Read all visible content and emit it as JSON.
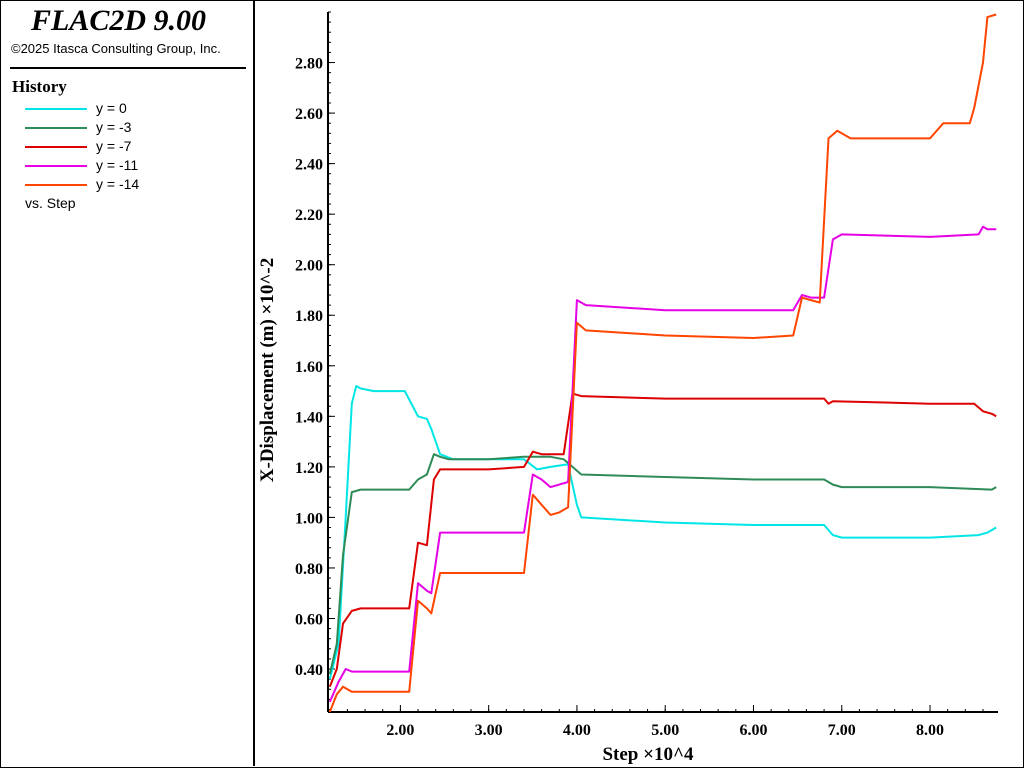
{
  "app": {
    "title": "FLAC2D 9.00",
    "copyright": "©2025 Itasca Consulting Group, Inc."
  },
  "legend": {
    "heading": "History",
    "items": [
      {
        "label": "y = 0",
        "color": "#00e6e6"
      },
      {
        "label": "y = -3",
        "color": "#2e8b57"
      },
      {
        "label": "y = -7",
        "color": "#dd0000"
      },
      {
        "label": "y = -11",
        "color": "#e600e6"
      },
      {
        "label": "y = -14",
        "color": "#ff4500"
      }
    ],
    "vs_label": "vs. Step"
  },
  "chart_data": {
    "type": "line",
    "xlabel": "Step ×10^4",
    "ylabel": "X-Displacement (m) ×10^-2",
    "xlim": [
      1.18,
      8.77
    ],
    "ylim": [
      0.23,
      3.0
    ],
    "xticks": [
      "2.00",
      "3.00",
      "4.00",
      "5.00",
      "6.00",
      "7.00",
      "8.00"
    ],
    "yticks": [
      "0.40",
      "0.60",
      "0.80",
      "1.00",
      "1.20",
      "1.40",
      "1.60",
      "1.80",
      "2.00",
      "2.20",
      "2.40",
      "2.60",
      "2.80"
    ],
    "grid": false,
    "series": [
      {
        "name": "y = 0",
        "color": "#00e6e6",
        "x": [
          1.2,
          1.3,
          1.38,
          1.45,
          1.5,
          1.55,
          1.7,
          2.05,
          2.2,
          2.3,
          2.35,
          2.45,
          2.6,
          3.0,
          3.4,
          3.55,
          3.7,
          3.9,
          4.0,
          4.05,
          5.0,
          6.0,
          6.8,
          6.9,
          7.0,
          8.0,
          8.55,
          8.65,
          8.75
        ],
        "y": [
          0.36,
          0.5,
          1.0,
          1.45,
          1.52,
          1.51,
          1.5,
          1.5,
          1.4,
          1.39,
          1.35,
          1.25,
          1.23,
          1.23,
          1.23,
          1.19,
          1.2,
          1.21,
          1.05,
          1.0,
          0.98,
          0.97,
          0.97,
          0.93,
          0.92,
          0.92,
          0.93,
          0.94,
          0.96
        ]
      },
      {
        "name": "y = -3",
        "color": "#2e8b57",
        "x": [
          1.2,
          1.28,
          1.35,
          1.45,
          1.55,
          2.1,
          2.2,
          2.3,
          2.38,
          2.45,
          2.55,
          3.0,
          3.4,
          3.55,
          3.7,
          3.85,
          3.95,
          4.05,
          5.0,
          6.0,
          6.8,
          6.9,
          7.0,
          8.0,
          8.7,
          8.75
        ],
        "y": [
          0.38,
          0.5,
          0.85,
          1.1,
          1.11,
          1.11,
          1.15,
          1.17,
          1.25,
          1.24,
          1.23,
          1.23,
          1.24,
          1.24,
          1.24,
          1.23,
          1.2,
          1.17,
          1.16,
          1.15,
          1.15,
          1.13,
          1.12,
          1.12,
          1.11,
          1.12
        ]
      },
      {
        "name": "y = -7",
        "color": "#dd0000",
        "x": [
          1.2,
          1.28,
          1.35,
          1.45,
          1.55,
          2.1,
          2.2,
          2.3,
          2.38,
          2.45,
          2.55,
          3.0,
          3.4,
          3.5,
          3.6,
          3.75,
          3.85,
          3.95,
          4.05,
          5.0,
          6.0,
          6.8,
          6.85,
          6.9,
          8.0,
          8.5,
          8.6,
          8.7,
          8.75
        ],
        "y": [
          0.33,
          0.4,
          0.58,
          0.63,
          0.64,
          0.64,
          0.9,
          0.89,
          1.15,
          1.19,
          1.19,
          1.19,
          1.2,
          1.26,
          1.25,
          1.25,
          1.25,
          1.49,
          1.48,
          1.47,
          1.47,
          1.47,
          1.45,
          1.46,
          1.45,
          1.45,
          1.42,
          1.41,
          1.4
        ]
      },
      {
        "name": "y = -11",
        "color": "#e600e6",
        "x": [
          1.2,
          1.3,
          1.38,
          1.45,
          1.55,
          2.1,
          2.2,
          2.3,
          2.35,
          2.45,
          2.55,
          3.0,
          3.4,
          3.5,
          3.6,
          3.7,
          3.8,
          3.9,
          4.0,
          4.1,
          5.0,
          6.0,
          6.45,
          6.55,
          6.65,
          6.8,
          6.9,
          7.0,
          8.0,
          8.55,
          8.6,
          8.65,
          8.75
        ],
        "y": [
          0.27,
          0.35,
          0.4,
          0.39,
          0.39,
          0.39,
          0.74,
          0.71,
          0.7,
          0.94,
          0.94,
          0.94,
          0.94,
          1.17,
          1.15,
          1.12,
          1.13,
          1.14,
          1.86,
          1.84,
          1.82,
          1.82,
          1.82,
          1.88,
          1.87,
          1.87,
          2.1,
          2.12,
          2.11,
          2.12,
          2.15,
          2.14,
          2.14
        ]
      },
      {
        "name": "y = -14",
        "color": "#ff4500",
        "x": [
          1.2,
          1.28,
          1.35,
          1.45,
          1.55,
          2.1,
          2.2,
          2.3,
          2.35,
          2.45,
          2.55,
          3.0,
          3.4,
          3.5,
          3.6,
          3.7,
          3.8,
          3.9,
          4.0,
          4.1,
          5.0,
          6.0,
          6.45,
          6.55,
          6.65,
          6.75,
          6.85,
          6.95,
          7.1,
          8.0,
          8.15,
          8.3,
          8.45,
          8.5,
          8.6,
          8.65,
          8.75
        ],
        "y": [
          0.23,
          0.3,
          0.33,
          0.31,
          0.31,
          0.31,
          0.67,
          0.64,
          0.62,
          0.78,
          0.78,
          0.78,
          0.78,
          1.09,
          1.05,
          1.01,
          1.02,
          1.04,
          1.77,
          1.74,
          1.72,
          1.71,
          1.72,
          1.87,
          1.86,
          1.85,
          2.5,
          2.53,
          2.5,
          2.5,
          2.56,
          2.56,
          2.56,
          2.62,
          2.8,
          2.98,
          2.99
        ]
      }
    ]
  }
}
